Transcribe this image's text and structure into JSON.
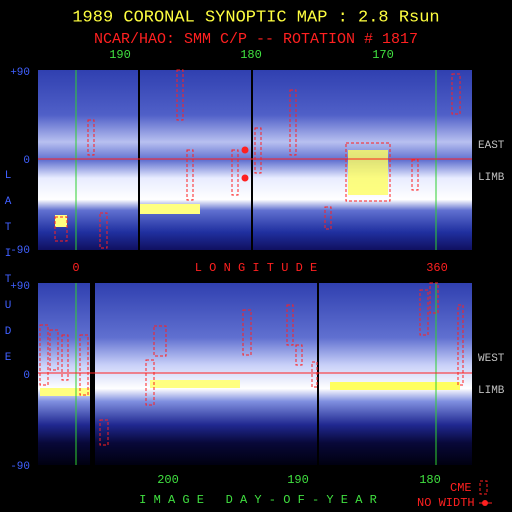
{
  "header": {
    "title": "1989 CORONAL SYNOPTIC MAP : 2.8 Rsun",
    "subtitle": "NCAR/HAO: SMM C/P -- ROTATION # 1817"
  },
  "top_axis": {
    "labels": [
      "190",
      "180",
      "170"
    ]
  },
  "latitude_axis": {
    "label": "LATITUDE",
    "top_panel": [
      "+90",
      "0",
      "-90"
    ],
    "bottom_panel": [
      "+90",
      "0",
      "-90"
    ]
  },
  "east_panel": {
    "side": "EAST",
    "limb": "LIMB"
  },
  "longitude_axis": {
    "start": "0",
    "label": "L O N G I T U D E",
    "end": "360"
  },
  "west_panel": {
    "side": "WEST",
    "limb": "LIMB"
  },
  "bottom_axis": {
    "labels": [
      "200",
      "190",
      "180"
    ],
    "label": "I M A G E   D A Y - O F - Y E A R"
  },
  "key": {
    "cme": "CME",
    "no_width": "NO WIDTH"
  }
}
